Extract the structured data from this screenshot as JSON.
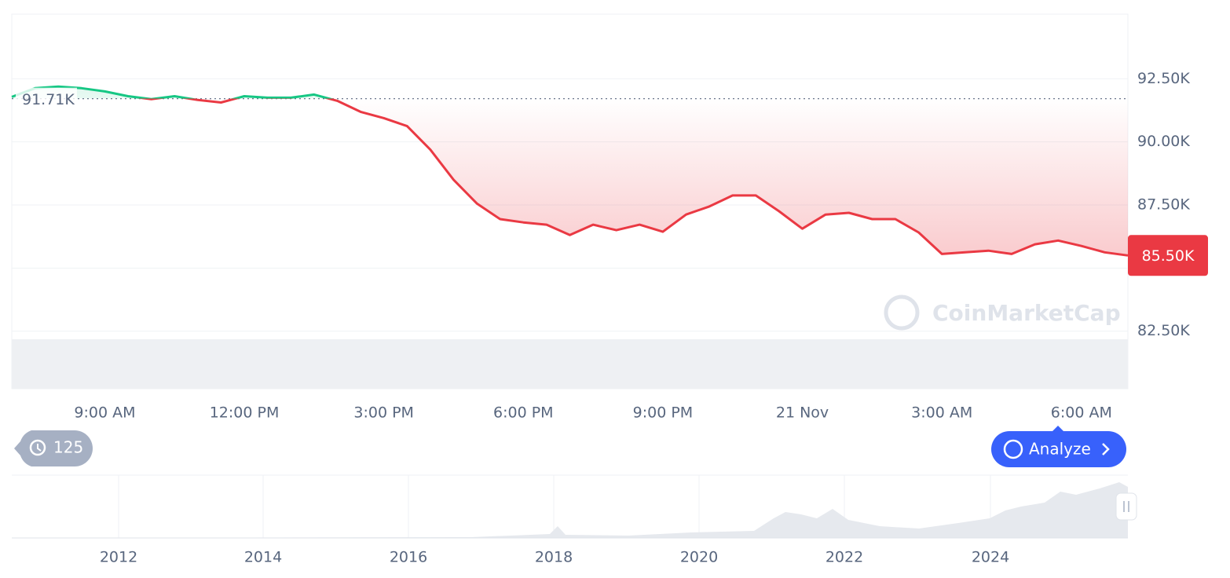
{
  "chart_data": {
    "type": "line",
    "x": [
      7,
      7.5,
      8,
      8.5,
      9,
      9.5,
      10,
      10.5,
      11,
      11.5,
      12,
      12.5,
      13,
      13.5,
      14,
      14.5,
      15,
      15.5,
      16,
      16.5,
      17,
      17.5,
      18,
      18.5,
      19,
      19.5,
      20,
      20.5,
      21,
      21.5,
      22,
      22.5,
      23,
      23.5,
      24,
      24.5,
      25,
      25.5,
      26,
      26.5,
      27,
      27.5,
      28,
      28.5,
      29,
      29.5,
      30,
      30.5,
      31
    ],
    "values": [
      91781,
      92125,
      92190,
      92125,
      92000,
      91810,
      91690,
      91810,
      91660,
      91560,
      91810,
      91750,
      91750,
      91875,
      91625,
      91190,
      90940,
      90625,
      89690,
      88500,
      87560,
      86940,
      86810,
      86720,
      86310,
      86720,
      86500,
      86720,
      86440,
      87120,
      87440,
      87875,
      87875,
      87250,
      86560,
      87120,
      87190,
      86940,
      86940,
      86410,
      85560,
      85625,
      85690,
      85560,
      85940,
      86090,
      85875,
      85625,
      85500
    ],
    "up_color": "#16c784",
    "down_color": "#ea3943",
    "xlim": [
      7,
      31
    ],
    "xticks": [
      {
        "value": 9,
        "label": "9:00 AM"
      },
      {
        "value": 12,
        "label": "12:00 PM"
      },
      {
        "value": 15,
        "label": "3:00 PM"
      },
      {
        "value": 18,
        "label": "6:00 PM"
      },
      {
        "value": 21,
        "label": "9:00 PM"
      },
      {
        "value": 24,
        "label": "21 Nov"
      },
      {
        "value": 27,
        "label": "3:00 AM"
      },
      {
        "value": 30,
        "label": "6:00 AM"
      }
    ],
    "ylim": [
      80220,
      95060
    ],
    "yticks": [
      {
        "value": 82500,
        "label": "82.50K"
      },
      {
        "value": 85000,
        "label": "85.00K"
      },
      {
        "value": 87500,
        "label": "87.50K"
      },
      {
        "value": 90000,
        "label": "90.00K"
      },
      {
        "value": 92500,
        "label": "92.50K"
      }
    ],
    "grid": true,
    "baseline": {
      "value": 91710,
      "label": "91.71K"
    },
    "last_price": {
      "value": 85500,
      "label": "85.50K"
    }
  },
  "watermark": "CoinMarketCap",
  "history_badge": "125",
  "analyze_button": "Analyze",
  "navigator": {
    "x_labels": [
      "2012",
      "2014",
      "2016",
      "2018",
      "2020",
      "2022",
      "2024"
    ]
  }
}
